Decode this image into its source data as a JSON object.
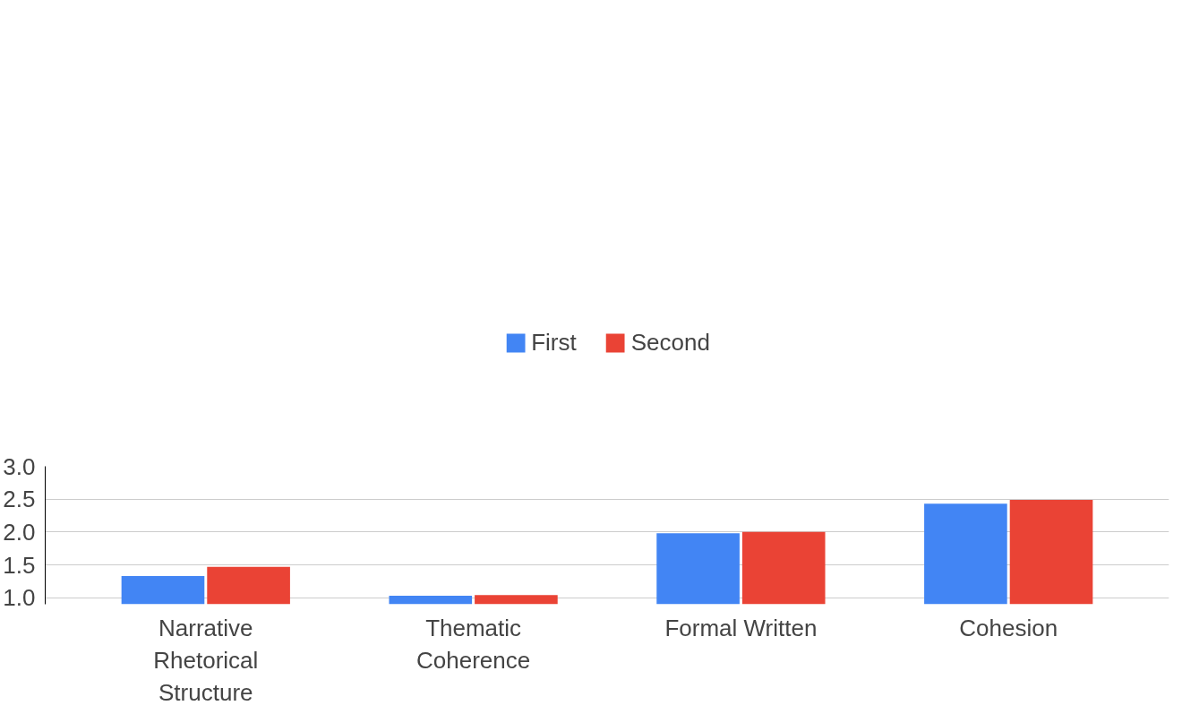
{
  "chart_data": {
    "type": "bar",
    "categories": [
      "Narrative Rhetorical Structure",
      "Thematic Coherence",
      "Formal Written",
      "Cohesion"
    ],
    "series": [
      {
        "name": "First",
        "color": "#4285f4",
        "values": [
          1.33,
          1.03,
          1.98,
          2.43
        ]
      },
      {
        "name": "Second",
        "color": "#ea4335",
        "values": [
          1.47,
          1.04,
          2.0,
          2.49
        ]
      }
    ],
    "ylim": [
      0.9,
      3.0
    ],
    "yticks": [
      {
        "value": 1.0,
        "label": "1.0"
      },
      1.5,
      {
        "value": 2.0,
        "label": "2.0"
      },
      2.5,
      {
        "value": 3.0,
        "label": "3.0"
      }
    ],
    "grid": "y",
    "legend": "top"
  }
}
